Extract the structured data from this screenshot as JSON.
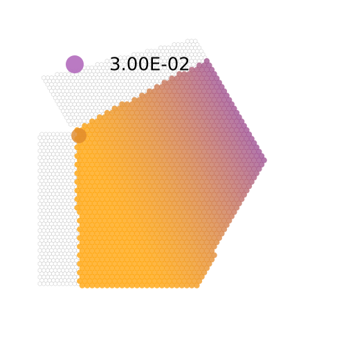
{
  "legend": {
    "label": "3.00E-02"
  }
}
